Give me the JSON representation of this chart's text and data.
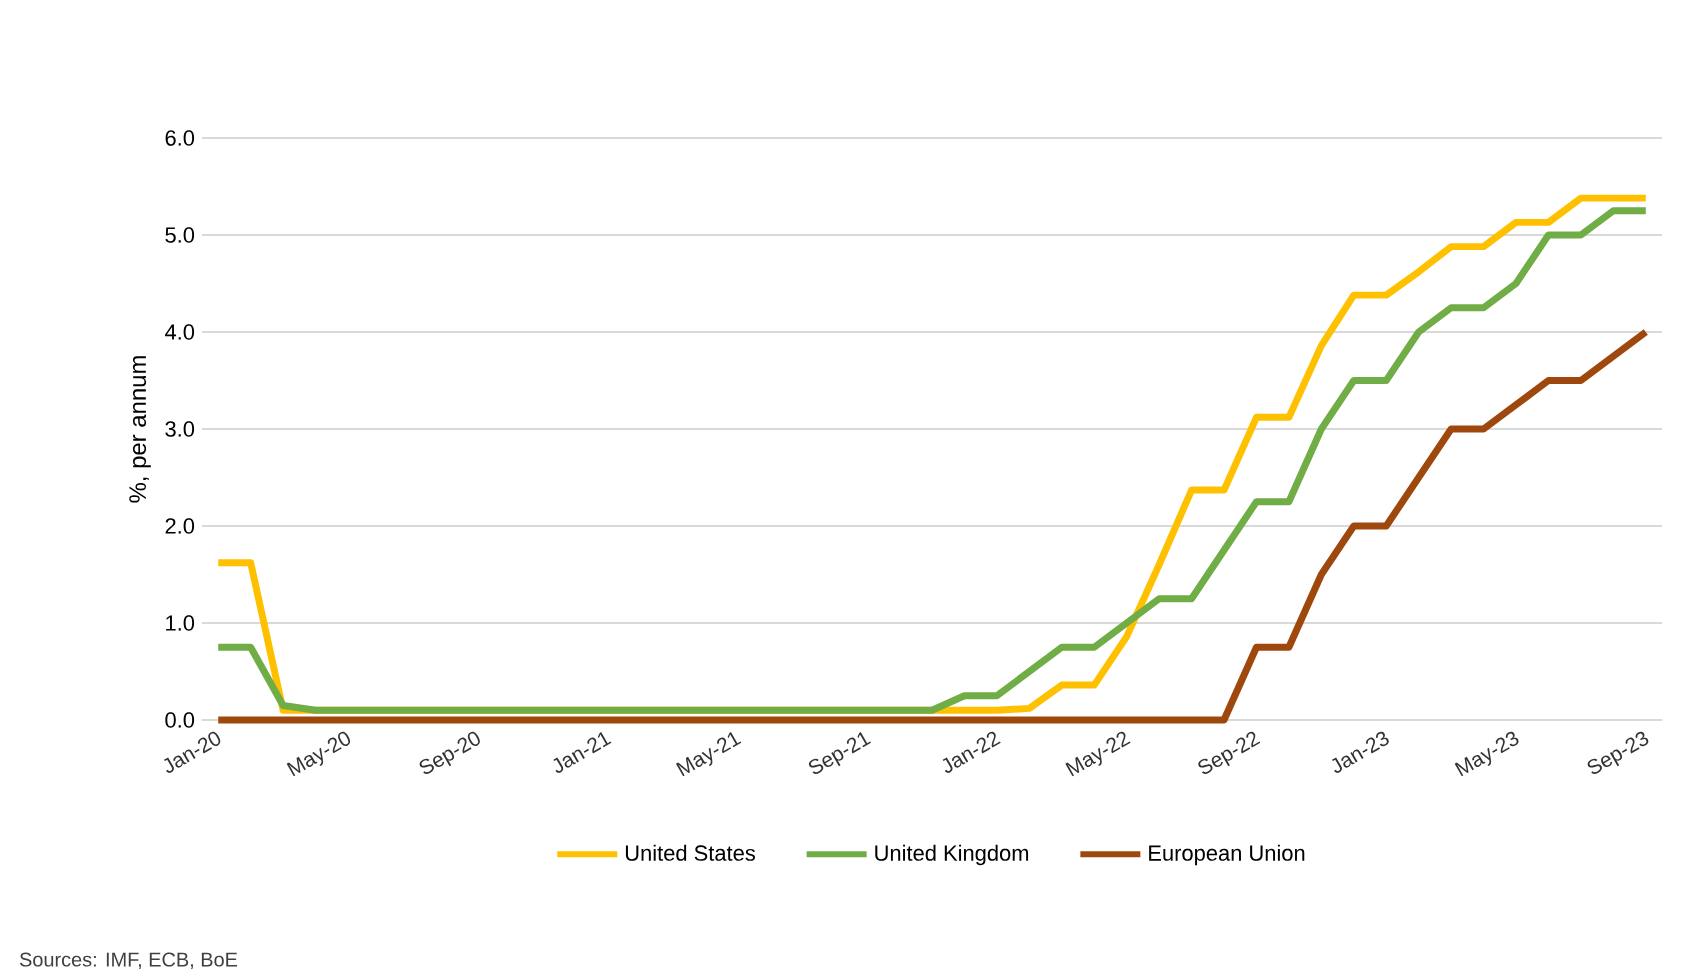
{
  "chart_data": {
    "type": "line",
    "ylabel": "%, per annum",
    "categories": [
      "Jan-20",
      null,
      null,
      null,
      "May-20",
      null,
      null,
      null,
      "Sep-20",
      null,
      null,
      null,
      "Jan-21",
      null,
      null,
      null,
      "May-21",
      null,
      null,
      null,
      "Sep-21",
      null,
      null,
      null,
      "Jan-22",
      null,
      null,
      null,
      "May-22",
      null,
      null,
      null,
      "Sep-22",
      null,
      null,
      null,
      "Jan-23",
      null,
      null,
      null,
      "May-23",
      null,
      null,
      null,
      "Sep-23"
    ],
    "series": [
      {
        "name": "United States",
        "color": "#ffc000",
        "values": [
          1.62,
          1.62,
          0.1,
          0.1,
          0.1,
          0.1,
          0.1,
          0.1,
          0.1,
          0.1,
          0.1,
          0.1,
          0.1,
          0.1,
          0.1,
          0.1,
          0.1,
          0.1,
          0.1,
          0.1,
          0.1,
          0.1,
          0.1,
          0.1,
          0.1,
          0.12,
          0.36,
          0.36,
          0.86,
          1.6,
          2.37,
          2.37,
          3.12,
          3.12,
          3.86,
          4.38,
          4.38,
          4.62,
          4.88,
          4.88,
          5.13,
          5.13,
          5.38,
          5.38,
          5.38
        ]
      },
      {
        "name": "United Kingdom",
        "color": "#70ad47",
        "values": [
          0.75,
          0.75,
          0.15,
          0.1,
          0.1,
          0.1,
          0.1,
          0.1,
          0.1,
          0.1,
          0.1,
          0.1,
          0.1,
          0.1,
          0.1,
          0.1,
          0.1,
          0.1,
          0.1,
          0.1,
          0.1,
          0.1,
          0.1,
          0.25,
          0.25,
          0.5,
          0.75,
          0.75,
          1.0,
          1.25,
          1.25,
          1.75,
          2.25,
          2.25,
          3.0,
          3.5,
          3.5,
          4.0,
          4.25,
          4.25,
          4.5,
          5.0,
          5.0,
          5.25,
          5.25
        ]
      },
      {
        "name": "European Union",
        "color": "#9e480e",
        "values": [
          0,
          0,
          0,
          0,
          0,
          0,
          0,
          0,
          0,
          0,
          0,
          0,
          0,
          0,
          0,
          0,
          0,
          0,
          0,
          0,
          0,
          0,
          0,
          0,
          0,
          0,
          0,
          0,
          0,
          0,
          0,
          0,
          0.75,
          0.75,
          1.5,
          2.0,
          2.0,
          2.5,
          3.0,
          3.0,
          3.25,
          3.5,
          3.5,
          3.75,
          4.0
        ]
      }
    ],
    "ylim": [
      0,
      6
    ],
    "yticks": [
      {
        "value": 0,
        "label": "0.0"
      },
      {
        "value": 1,
        "label": "1.0"
      },
      {
        "value": 2,
        "label": "2.0"
      },
      {
        "value": 3,
        "label": "3.0"
      },
      {
        "value": 4,
        "label": "4.0"
      },
      {
        "value": 5,
        "label": "5.0"
      },
      {
        "value": 6,
        "label": "6.0"
      }
    ],
    "grid": "y",
    "legend": "bottom",
    "marker": "none",
    "line_style": "solid",
    "annotations": [
      "Sources: IMF, ECB, BoE"
    ]
  }
}
